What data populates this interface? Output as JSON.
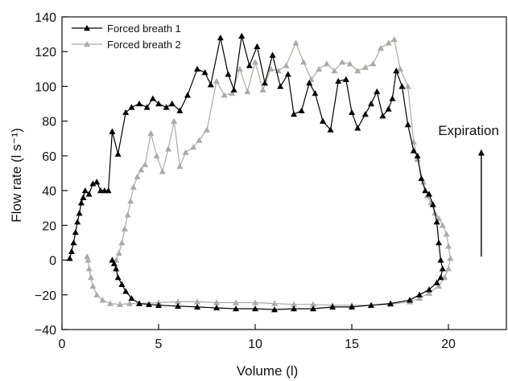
{
  "chart_data": {
    "type": "line",
    "xlabel": "Volume (l)",
    "ylabel": "Flow rate (l s⁻¹)",
    "xlim": [
      0,
      23
    ],
    "ylim": [
      -40,
      140
    ],
    "xticks": [
      0,
      5,
      10,
      15,
      20
    ],
    "yticks": [
      -40,
      -20,
      0,
      20,
      40,
      60,
      80,
      100,
      120,
      140
    ],
    "xtick_labels": [
      "0",
      "5",
      "10",
      "15",
      "20"
    ],
    "ytick_labels": [
      "−40",
      "−20",
      "0",
      "20",
      "40",
      "60",
      "80",
      "100",
      "120",
      "140"
    ],
    "grid": false,
    "legend_position": "top-left",
    "annotation": {
      "text": "Expiration",
      "arrow_x": 21.7,
      "arrow_from_y": 2,
      "arrow_to_y": 62
    },
    "series": [
      {
        "name": "Forced breath 1",
        "color": "#000000",
        "marker": "triangle",
        "points": [
          [
            0.4,
            1
          ],
          [
            0.5,
            5
          ],
          [
            0.6,
            10
          ],
          [
            0.7,
            16
          ],
          [
            0.8,
            22
          ],
          [
            0.9,
            27
          ],
          [
            1.0,
            33
          ],
          [
            1.1,
            36
          ],
          [
            1.2,
            40
          ],
          [
            1.4,
            38
          ],
          [
            1.6,
            44
          ],
          [
            1.8,
            45
          ],
          [
            2.0,
            40
          ],
          [
            2.2,
            40
          ],
          [
            2.4,
            40
          ],
          [
            2.6,
            74
          ],
          [
            2.9,
            61
          ],
          [
            3.3,
            85
          ],
          [
            3.6,
            88
          ],
          [
            4.0,
            90
          ],
          [
            4.4,
            88
          ],
          [
            4.7,
            93
          ],
          [
            5.0,
            90
          ],
          [
            5.4,
            88
          ],
          [
            5.7,
            90
          ],
          [
            6.1,
            86
          ],
          [
            6.5,
            95
          ],
          [
            7.0,
            110
          ],
          [
            7.4,
            108
          ],
          [
            7.7,
            101
          ],
          [
            8.2,
            128
          ],
          [
            8.6,
            107
          ],
          [
            8.9,
            98
          ],
          [
            9.3,
            129
          ],
          [
            9.7,
            112
          ],
          [
            10.1,
            123
          ],
          [
            10.5,
            102
          ],
          [
            10.9,
            118
          ],
          [
            11.3,
            100
          ],
          [
            11.7,
            107
          ],
          [
            12.0,
            84
          ],
          [
            12.4,
            86
          ],
          [
            12.8,
            102
          ],
          [
            13.1,
            96
          ],
          [
            13.5,
            80
          ],
          [
            13.9,
            75
          ],
          [
            14.3,
            103
          ],
          [
            14.7,
            104
          ],
          [
            15.0,
            85
          ],
          [
            15.3,
            76
          ],
          [
            15.7,
            84
          ],
          [
            16.0,
            90
          ],
          [
            16.3,
            97
          ],
          [
            16.6,
            83
          ],
          [
            16.9,
            87
          ],
          [
            17.1,
            93
          ],
          [
            17.3,
            109
          ],
          [
            17.6,
            100
          ],
          [
            17.9,
            78
          ],
          [
            18.2,
            63
          ],
          [
            18.4,
            60
          ],
          [
            18.6,
            47
          ],
          [
            18.8,
            40
          ],
          [
            19.0,
            38
          ],
          [
            19.2,
            32
          ],
          [
            19.4,
            22
          ],
          [
            19.5,
            10
          ],
          [
            19.6,
            0
          ],
          [
            19.7,
            -5
          ],
          [
            19.6,
            -10
          ],
          [
            19.4,
            -13
          ],
          [
            19.0,
            -17
          ],
          [
            18.5,
            -20
          ],
          [
            18.0,
            -23
          ],
          [
            17.0,
            -25
          ],
          [
            16.0,
            -26
          ],
          [
            15.0,
            -27
          ],
          [
            14.0,
            -27
          ],
          [
            13.0,
            -28
          ],
          [
            12.0,
            -28
          ],
          [
            11.0,
            -28.5
          ],
          [
            10.0,
            -28
          ],
          [
            9.0,
            -28
          ],
          [
            8.0,
            -27.5
          ],
          [
            7.0,
            -27
          ],
          [
            6.0,
            -26.5
          ],
          [
            5.0,
            -26
          ],
          [
            4.5,
            -25.5
          ],
          [
            4.0,
            -25
          ],
          [
            3.6,
            -22
          ],
          [
            3.3,
            -18
          ],
          [
            3.1,
            -14
          ],
          [
            2.9,
            -10
          ],
          [
            2.8,
            -5
          ],
          [
            2.7,
            -2
          ],
          [
            2.6,
            0
          ]
        ]
      },
      {
        "name": "Forced breath 2",
        "color": "#a8ada6",
        "marker": "triangle",
        "points": [
          [
            2.8,
            0
          ],
          [
            2.95,
            4
          ],
          [
            3.1,
            10
          ],
          [
            3.25,
            18
          ],
          [
            3.4,
            26
          ],
          [
            3.55,
            34
          ],
          [
            3.7,
            42
          ],
          [
            3.9,
            48
          ],
          [
            4.1,
            52
          ],
          [
            4.3,
            55
          ],
          [
            4.6,
            73
          ],
          [
            4.9,
            60
          ],
          [
            5.2,
            51
          ],
          [
            5.5,
            64
          ],
          [
            5.8,
            80
          ],
          [
            6.1,
            54
          ],
          [
            6.4,
            62
          ],
          [
            6.8,
            65
          ],
          [
            7.1,
            69
          ],
          [
            7.5,
            75
          ],
          [
            8.0,
            103
          ],
          [
            8.4,
            95
          ],
          [
            8.8,
            96
          ],
          [
            9.2,
            110
          ],
          [
            9.6,
            97
          ],
          [
            10.0,
            114
          ],
          [
            10.4,
            98
          ],
          [
            10.8,
            110
          ],
          [
            11.2,
            109
          ],
          [
            11.6,
            112
          ],
          [
            12.1,
            125
          ],
          [
            12.5,
            114
          ],
          [
            12.9,
            104
          ],
          [
            13.3,
            110
          ],
          [
            13.7,
            113
          ],
          [
            14.1,
            109
          ],
          [
            14.5,
            114
          ],
          [
            14.9,
            113
          ],
          [
            15.3,
            109
          ],
          [
            15.7,
            111
          ],
          [
            16.1,
            113
          ],
          [
            16.5,
            122
          ],
          [
            16.9,
            125
          ],
          [
            17.2,
            127
          ],
          [
            17.5,
            110
          ],
          [
            17.9,
            100
          ],
          [
            18.2,
            68
          ],
          [
            18.4,
            58
          ],
          [
            18.7,
            45
          ],
          [
            18.9,
            37
          ],
          [
            19.1,
            33
          ],
          [
            19.3,
            27
          ],
          [
            19.5,
            24
          ],
          [
            19.7,
            20
          ],
          [
            19.9,
            15
          ],
          [
            20.0,
            8
          ],
          [
            20.1,
            1
          ],
          [
            20.0,
            -5
          ],
          [
            19.8,
            -10
          ],
          [
            19.5,
            -15
          ],
          [
            19.0,
            -19
          ],
          [
            18.5,
            -22
          ],
          [
            18.0,
            -24
          ],
          [
            17.0,
            -25.5
          ],
          [
            16.0,
            -26
          ],
          [
            15.0,
            -26
          ],
          [
            14.0,
            -26
          ],
          [
            13.0,
            -25.5
          ],
          [
            12.0,
            -25.5
          ],
          [
            11.0,
            -25
          ],
          [
            10.0,
            -24.5
          ],
          [
            9.0,
            -24.5
          ],
          [
            8.0,
            -24.5
          ],
          [
            7.0,
            -24
          ],
          [
            6.0,
            -24
          ],
          [
            5.0,
            -24.5
          ],
          [
            4.0,
            -25
          ],
          [
            3.5,
            -25
          ],
          [
            3.0,
            -25.5
          ],
          [
            2.5,
            -25
          ],
          [
            2.1,
            -23
          ],
          [
            1.8,
            -20
          ],
          [
            1.6,
            -15
          ],
          [
            1.5,
            -10
          ],
          [
            1.4,
            -5
          ],
          [
            1.35,
            0
          ],
          [
            1.3,
            2
          ]
        ]
      }
    ]
  }
}
